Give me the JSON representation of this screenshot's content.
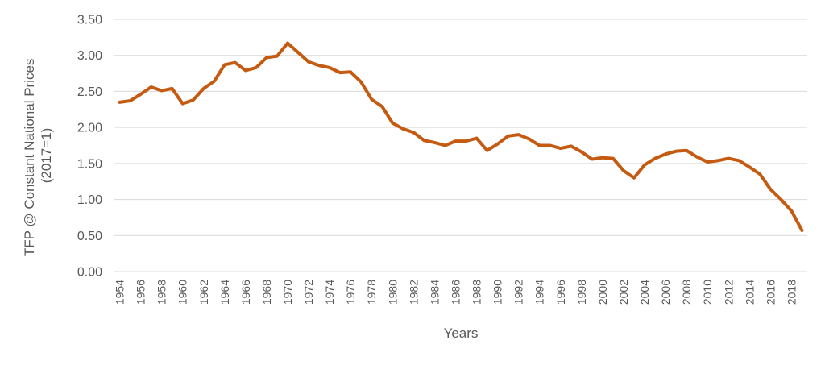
{
  "chart_data": {
    "type": "line",
    "title": "",
    "xlabel": "Years",
    "ylabel_lines": [
      "TFP @ Constant National Prices",
      "(2017=1)"
    ],
    "ylim": [
      0,
      3.5
    ],
    "yticks": [
      "0.00",
      "0.50",
      "1.00",
      "1.50",
      "2.00",
      "2.50",
      "3.00",
      "3.50"
    ],
    "grid": true,
    "line_color": "#C55A11",
    "x": [
      1954,
      1955,
      1956,
      1957,
      1958,
      1959,
      1960,
      1961,
      1962,
      1963,
      1964,
      1965,
      1966,
      1967,
      1968,
      1969,
      1970,
      1971,
      1972,
      1973,
      1974,
      1975,
      1976,
      1977,
      1978,
      1979,
      1980,
      1981,
      1982,
      1983,
      1984,
      1985,
      1986,
      1987,
      1988,
      1989,
      1990,
      1991,
      1992,
      1993,
      1994,
      1995,
      1996,
      1997,
      1998,
      1999,
      2000,
      2001,
      2002,
      2003,
      2004,
      2005,
      2006,
      2007,
      2008,
      2009,
      2010,
      2011,
      2012,
      2013,
      2014,
      2015,
      2016,
      2017,
      2018,
      2019
    ],
    "series": [
      {
        "values": [
          2.35,
          2.37,
          2.46,
          2.56,
          2.51,
          2.54,
          2.33,
          2.38,
          2.54,
          2.64,
          2.87,
          2.9,
          2.79,
          2.83,
          2.97,
          2.99,
          3.17,
          3.04,
          2.91,
          2.86,
          2.83,
          2.76,
          2.77,
          2.63,
          2.39,
          2.29,
          2.06,
          1.98,
          1.93,
          1.82,
          1.79,
          1.75,
          1.81,
          1.81,
          1.85,
          1.68,
          1.77,
          1.88,
          1.9,
          1.84,
          1.75,
          1.75,
          1.71,
          1.74,
          1.66,
          1.56,
          1.58,
          1.57,
          1.4,
          1.3,
          1.48,
          1.57,
          1.63,
          1.67,
          1.68,
          1.59,
          1.52,
          1.54,
          1.57,
          1.54,
          1.45,
          1.35,
          1.14,
          1.0,
          0.84,
          0.57
        ]
      }
    ]
  }
}
